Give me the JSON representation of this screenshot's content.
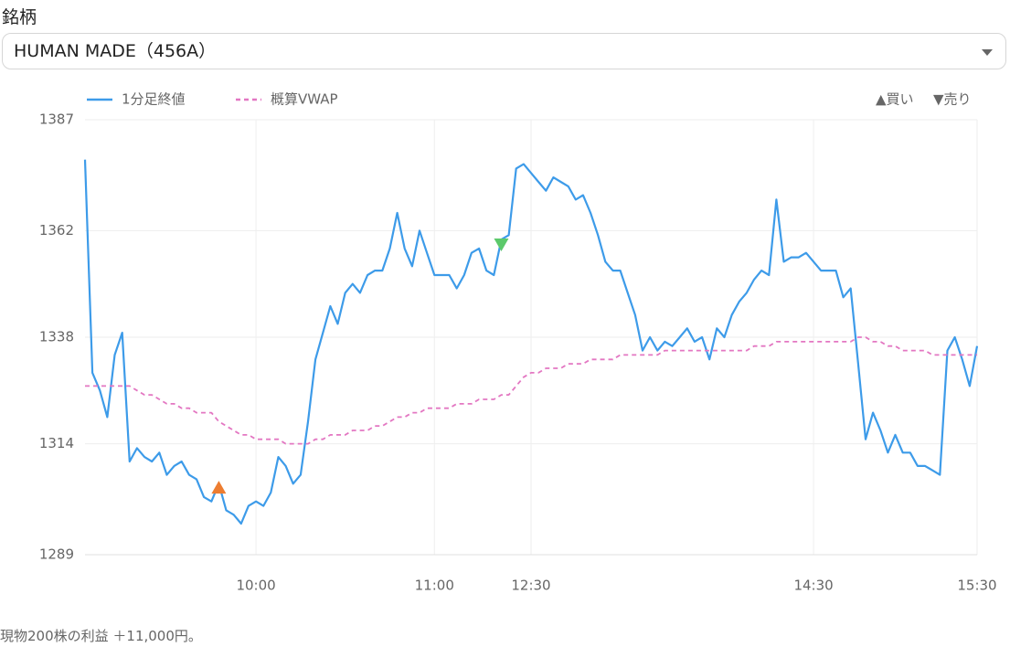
{
  "label": "銘柄",
  "select": {
    "value": "HUMAN MADE（456A）"
  },
  "chart_data": {
    "type": "line",
    "categories": [
      null,
      null,
      null,
      null,
      null,
      null,
      null,
      null,
      null,
      null,
      null,
      null,
      null,
      null,
      null,
      null,
      null,
      null,
      null,
      null,
      null,
      null,
      null,
      "10:00",
      null,
      null,
      null,
      null,
      null,
      null,
      null,
      null,
      null,
      null,
      null,
      null,
      null,
      null,
      null,
      null,
      null,
      null,
      null,
      null,
      null,
      null,
      null,
      "11:00",
      null,
      null,
      null,
      null,
      null,
      null,
      null,
      null,
      null,
      null,
      null,
      null,
      "12:30",
      null,
      null,
      null,
      null,
      null,
      null,
      null,
      null,
      null,
      null,
      null,
      null,
      null,
      null,
      null,
      null,
      null,
      null,
      null,
      null,
      null,
      null,
      null,
      null,
      null,
      null,
      null,
      null,
      null,
      null,
      null,
      null,
      null,
      null,
      null,
      null,
      null,
      "14:30",
      null,
      null,
      null,
      null,
      null,
      null,
      null,
      null,
      null,
      null,
      null,
      null,
      null,
      null,
      null,
      null,
      null,
      null,
      null,
      null,
      null,
      "15:30"
    ],
    "series": [
      {
        "name": "1分足終値",
        "color": "#3d9be9",
        "style": "solid",
        "values": [
          1378,
          1330,
          1326,
          1320,
          1334,
          1339,
          1310,
          1313,
          1311,
          1310,
          1312,
          1307,
          1309,
          1310,
          1307,
          1306,
          1302,
          1301,
          1305,
          1299,
          1298,
          1296,
          1300,
          1301,
          1300,
          1303,
          1311,
          1309,
          1305,
          1307,
          1319,
          1333,
          1339,
          1345,
          1341,
          1348,
          1350,
          1348,
          1352,
          1353,
          1353,
          1358,
          1366,
          1358,
          1354,
          1362,
          1357,
          1352,
          1352,
          1352,
          1349,
          1352,
          1357,
          1358,
          1353,
          1352,
          1360,
          1361,
          1376,
          1377,
          1375,
          1373,
          1371,
          1374,
          1373,
          1372,
          1369,
          1370,
          1366,
          1361,
          1355,
          1353,
          1353,
          1348,
          1343,
          1335,
          1338,
          1335,
          1337,
          1336,
          1338,
          1340,
          1337,
          1338,
          1333,
          1340,
          1338,
          1343,
          1346,
          1348,
          1351,
          1353,
          1352,
          1369,
          1355,
          1356,
          1356,
          1357,
          1355,
          1353,
          1353,
          1353,
          1347,
          1349,
          1332,
          1315,
          1321,
          1317,
          1312,
          1316,
          1312,
          1312,
          1309,
          1309,
          1308,
          1307,
          1335,
          1338,
          1333,
          1327,
          1336
        ]
      },
      {
        "name": "概算VWAP",
        "color": "#e377c2",
        "style": "dashed",
        "values": [
          1327,
          1327,
          1327,
          1327,
          1327,
          1327,
          1327,
          1326,
          1325,
          1325,
          1324,
          1323,
          1323,
          1322,
          1322,
          1321,
          1321,
          1321,
          1319,
          1318,
          1317,
          1316,
          1316,
          1315,
          1315,
          1315,
          1315,
          1314,
          1314,
          1314,
          1314,
          1315,
          1315,
          1316,
          1316,
          1316,
          1317,
          1317,
          1317,
          1318,
          1318,
          1319,
          1320,
          1320,
          1321,
          1321,
          1322,
          1322,
          1322,
          1322,
          1323,
          1323,
          1323,
          1324,
          1324,
          1324,
          1325,
          1325,
          1327,
          1329,
          1330,
          1330,
          1331,
          1331,
          1331,
          1332,
          1332,
          1332,
          1333,
          1333,
          1333,
          1333,
          1334,
          1334,
          1334,
          1334,
          1334,
          1334,
          1335,
          1335,
          1335,
          1335,
          1335,
          1335,
          1335,
          1335,
          1335,
          1335,
          1335,
          1335,
          1336,
          1336,
          1336,
          1337,
          1337,
          1337,
          1337,
          1337,
          1337,
          1337,
          1337,
          1337,
          1337,
          1337,
          1338,
          1338,
          1337,
          1337,
          1336,
          1336,
          1335,
          1335,
          1335,
          1335,
          1334,
          1334,
          1334,
          1334,
          1334,
          1334,
          1334
        ]
      }
    ],
    "trades": [
      {
        "name": "▲買い",
        "color": "#ed7d31",
        "marker": "triangle-up",
        "index": 18,
        "value": 1304
      },
      {
        "name": "▼売り",
        "color": "#5cc96b",
        "marker": "triangle-down",
        "index": 56,
        "value": 1359
      }
    ],
    "ylim": [
      1289,
      1387
    ],
    "yticks": [
      1289,
      1314,
      1338,
      1362,
      1387
    ],
    "grid": true
  },
  "footer": "現物200株の利益 ＋11,000円。"
}
